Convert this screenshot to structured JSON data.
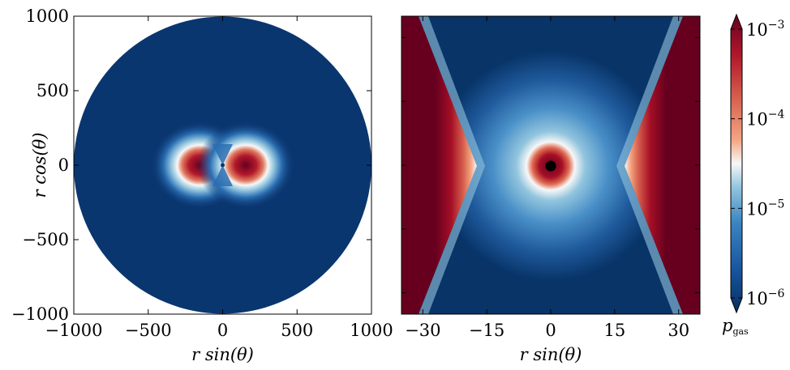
{
  "chart_data": [
    {
      "type": "heatmap",
      "panel": "left",
      "xlabel": "r sin(θ)",
      "ylabel": "r cos(θ)",
      "xlim": [
        -1000,
        1000
      ],
      "ylim": [
        -1000,
        1000
      ],
      "xticks": [
        "−1000",
        "−500",
        "0",
        "500",
        "1000"
      ],
      "yticks": [
        "1000",
        "500",
        "0",
        "−500",
        "−1000"
      ],
      "domain_radius": 1000,
      "features": {
        "background_value": 1e-06,
        "lobe_centers_x": [
          -150,
          150
        ],
        "lobe_peak_value": 0.001,
        "lobe_extent_x": 380,
        "lobe_extent_y": 300
      }
    },
    {
      "type": "heatmap",
      "panel": "right",
      "xlabel": "r sin(θ)",
      "xlim": [
        -35,
        35
      ],
      "ylim": [
        -35,
        35
      ],
      "xticks": [
        "−30",
        "−15",
        "0",
        "15",
        "30"
      ],
      "features": {
        "central_body_radius": 1,
        "ring_peak_radius": 4,
        "ring_peak_value": 0.001,
        "halo_radius": 27,
        "side_wall_vertex_x": 17.5,
        "side_wall_value": 0.001,
        "corridor_value": 1e-06
      }
    }
  ],
  "colorbar": {
    "label": "p_gas",
    "scale": "log",
    "range": [
      1e-06,
      0.001
    ],
    "ticks": [
      {
        "base": "10",
        "exp": "−3"
      },
      {
        "base": "10",
        "exp": "−4"
      },
      {
        "base": "10",
        "exp": "−5"
      },
      {
        "base": "10",
        "exp": "−6"
      }
    ],
    "extend": "both",
    "colormap": "RdBu_r",
    "colors": {
      "low": "#053061",
      "mid_low": "#2166ac",
      "light_blue": "#92c5de",
      "white": "#f7f7f7",
      "light_red": "#f4a582",
      "mid_high": "#d6604d",
      "high": "#67001f"
    }
  }
}
